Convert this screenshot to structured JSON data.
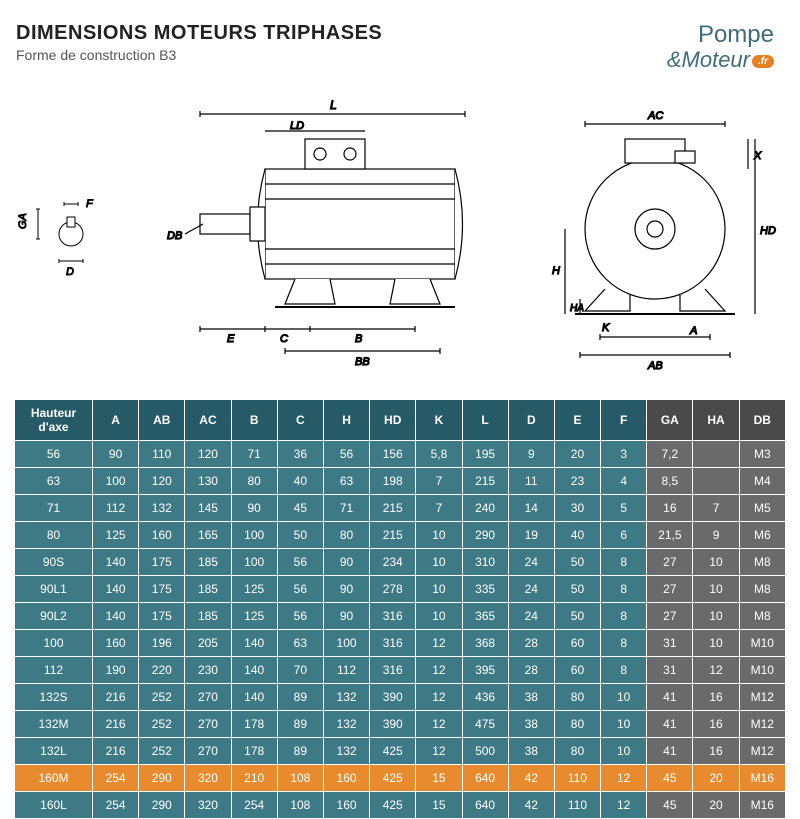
{
  "title": "DIMENSIONS MOTEURS TRIPHASES",
  "subtitle": "Forme de construction B3",
  "logo": {
    "line1": "Pompe",
    "line2": "Moteur",
    "amp": "&",
    "badge": ".fr"
  },
  "diagram_labels": {
    "GA": "GA",
    "F": "F",
    "D": "D",
    "DB": "DB",
    "L": "L",
    "LD": "LD",
    "E": "E",
    "C": "C",
    "B": "B",
    "BB": "BB",
    "AC": "AC",
    "X": "X",
    "HD": "HD",
    "H": "H",
    "HA": "HA",
    "K": "K",
    "A": "A",
    "AB": "AB"
  },
  "columns_main": [
    "Hauteur d'axe",
    "A",
    "AB",
    "AC",
    "B",
    "C",
    "H",
    "HD",
    "K",
    "L",
    "D",
    "E",
    "F"
  ],
  "columns_grey": [
    "GA",
    "HA",
    "DB"
  ],
  "rows": [
    {
      "c": [
        "56",
        "90",
        "110",
        "120",
        "71",
        "36",
        "56",
        "156",
        "5,8",
        "195",
        "9",
        "20",
        "3"
      ],
      "g": [
        "7,2",
        "",
        "M3"
      ]
    },
    {
      "c": [
        "63",
        "100",
        "120",
        "130",
        "80",
        "40",
        "63",
        "198",
        "7",
        "215",
        "11",
        "23",
        "4"
      ],
      "g": [
        "8,5",
        "",
        "M4"
      ]
    },
    {
      "c": [
        "71",
        "112",
        "132",
        "145",
        "90",
        "45",
        "71",
        "215",
        "7",
        "240",
        "14",
        "30",
        "5"
      ],
      "g": [
        "16",
        "7",
        "M5"
      ]
    },
    {
      "c": [
        "80",
        "125",
        "160",
        "165",
        "100",
        "50",
        "80",
        "215",
        "10",
        "290",
        "19",
        "40",
        "6"
      ],
      "g": [
        "21,5",
        "9",
        "M6"
      ]
    },
    {
      "c": [
        "90S",
        "140",
        "175",
        "185",
        "100",
        "56",
        "90",
        "234",
        "10",
        "310",
        "24",
        "50",
        "8"
      ],
      "g": [
        "27",
        "10",
        "M8"
      ]
    },
    {
      "c": [
        "90L1",
        "140",
        "175",
        "185",
        "125",
        "56",
        "90",
        "278",
        "10",
        "335",
        "24",
        "50",
        "8"
      ],
      "g": [
        "27",
        "10",
        "M8"
      ]
    },
    {
      "c": [
        "90L2",
        "140",
        "175",
        "185",
        "125",
        "56",
        "90",
        "316",
        "10",
        "365",
        "24",
        "50",
        "8"
      ],
      "g": [
        "27",
        "10",
        "M8"
      ]
    },
    {
      "c": [
        "100",
        "160",
        "196",
        "205",
        "140",
        "63",
        "100",
        "316",
        "12",
        "368",
        "28",
        "60",
        "8"
      ],
      "g": [
        "31",
        "10",
        "M10"
      ]
    },
    {
      "c": [
        "112",
        "190",
        "220",
        "230",
        "140",
        "70",
        "112",
        "316",
        "12",
        "395",
        "28",
        "60",
        "8"
      ],
      "g": [
        "31",
        "12",
        "M10"
      ]
    },
    {
      "c": [
        "132S",
        "216",
        "252",
        "270",
        "140",
        "89",
        "132",
        "390",
        "12",
        "436",
        "38",
        "80",
        "10"
      ],
      "g": [
        "41",
        "16",
        "M12"
      ]
    },
    {
      "c": [
        "132M",
        "216",
        "252",
        "270",
        "178",
        "89",
        "132",
        "390",
        "12",
        "475",
        "38",
        "80",
        "10"
      ],
      "g": [
        "41",
        "16",
        "M12"
      ]
    },
    {
      "c": [
        "132L",
        "216",
        "252",
        "270",
        "178",
        "89",
        "132",
        "425",
        "12",
        "500",
        "38",
        "80",
        "10"
      ],
      "g": [
        "41",
        "16",
        "M12"
      ]
    },
    {
      "c": [
        "160M",
        "254",
        "290",
        "320",
        "210",
        "108",
        "160",
        "425",
        "15",
        "640",
        "42",
        "110",
        "12"
      ],
      "g": [
        "45",
        "20",
        "M16"
      ],
      "hl": true
    },
    {
      "c": [
        "160L",
        "254",
        "290",
        "320",
        "254",
        "108",
        "160",
        "425",
        "15",
        "640",
        "42",
        "110",
        "12"
      ],
      "g": [
        "45",
        "20",
        "M16"
      ]
    }
  ],
  "styling": {
    "header_bg_main": "#265a66",
    "header_bg_grey": "#4a4a4a",
    "row_bg_main": "#3d7a86",
    "row_bg_grey": "#6a6a6a",
    "highlight_bg": "#e78b2e",
    "text_color": "#ffffff",
    "border_color": "#ffffff",
    "font_size_cell": 12,
    "logo_color": "#3d6d7a",
    "badge_bg": "#e67e22"
  }
}
